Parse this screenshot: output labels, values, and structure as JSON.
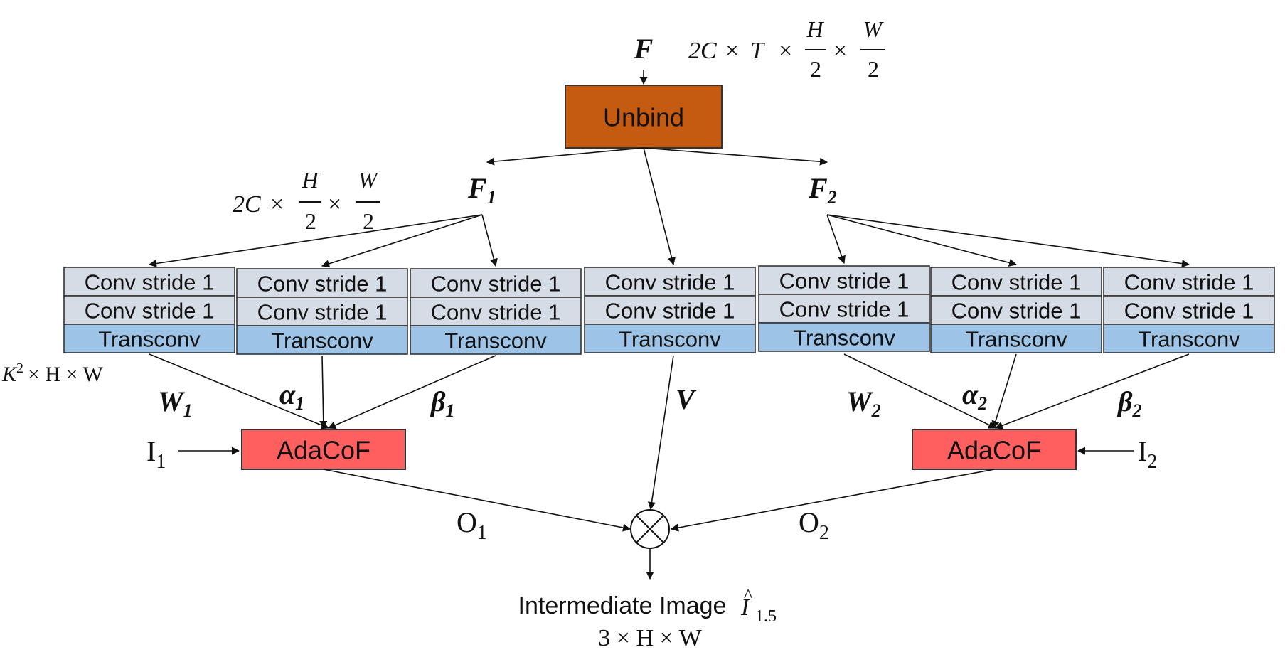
{
  "input": {
    "symbol": "F",
    "shape_terms": [
      "2C",
      "T",
      "H",
      "2",
      "W",
      "2"
    ],
    "times": "×"
  },
  "unbind": {
    "label": "Unbind",
    "color": "#c55a11"
  },
  "branches": {
    "f1": "F",
    "f1_sub": "1",
    "f2": "F",
    "f2_sub": "2"
  },
  "f1_shape": {
    "terms": [
      "2C",
      "H",
      "2",
      "W",
      "2"
    ],
    "times": "×"
  },
  "conv_label": "Conv stride 1",
  "transconv_label": "Transconv",
  "conv_color": "#d6dce5",
  "transconv_color": "#9dc3e6",
  "kernel_shape": {
    "k": "K",
    "exp": "2",
    "rest": "× H × W"
  },
  "outputs": {
    "w1": "W",
    "w1_sub": "1",
    "a1": "α",
    "a1_sub": "1",
    "b1": "β",
    "b1_sub": "1",
    "v": "V",
    "w2": "W",
    "w2_sub": "2",
    "a2": "α",
    "a2_sub": "2",
    "b2": "β",
    "b2_sub": "2"
  },
  "adacof": {
    "label": "AdaCoF",
    "color": "#ff5f5f"
  },
  "inputs": {
    "i1": "I",
    "i1_sub": "1",
    "i2": "I",
    "i2_sub": "2"
  },
  "occ": {
    "o1": "O",
    "o1_sub": "1",
    "o2": "O",
    "o2_sub": "2"
  },
  "result": {
    "label": "Intermediate Image",
    "symbol": "I",
    "hat": "^",
    "sub": "1.5",
    "shape": "3 × H × W"
  }
}
